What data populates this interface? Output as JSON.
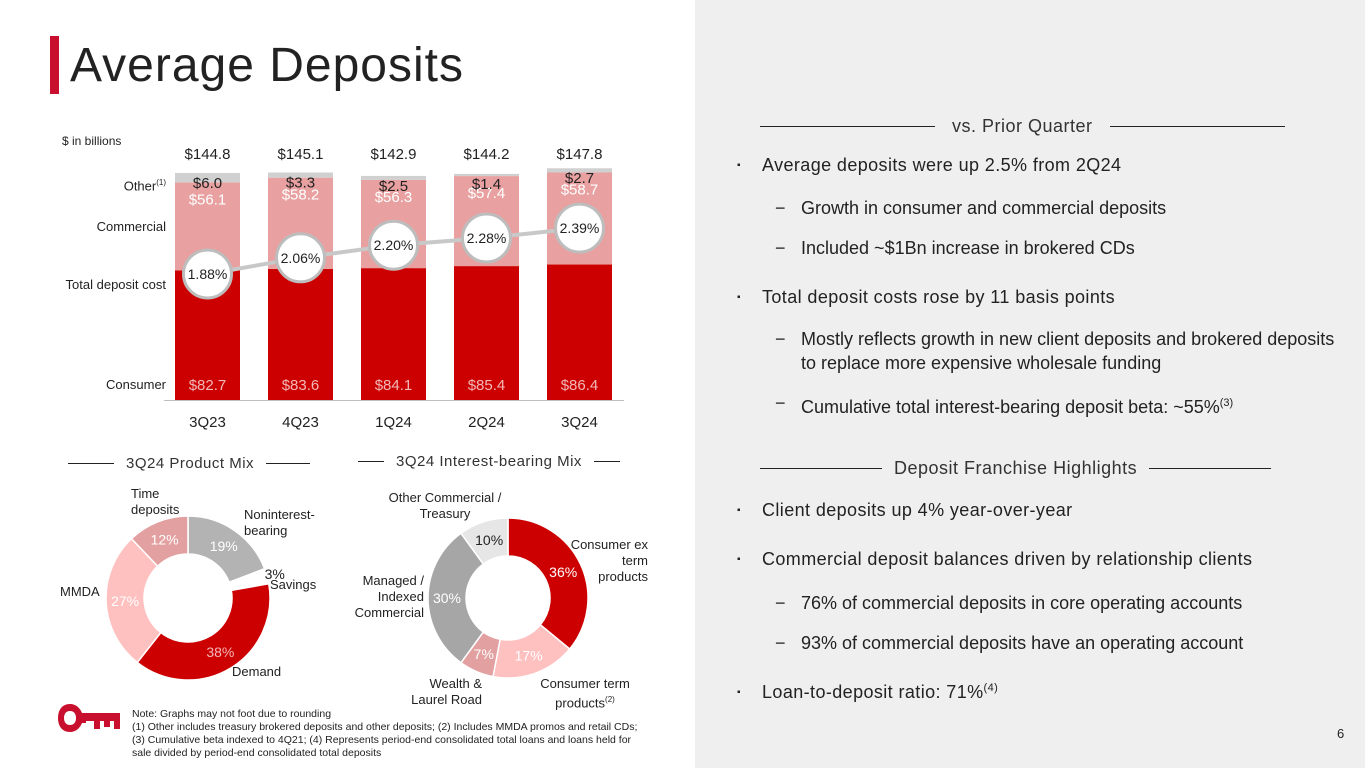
{
  "title": "Average Deposits",
  "units": "$ in billions",
  "side_labels": {
    "other": "Other",
    "other_sup": "(1)",
    "commercial": "Commercial",
    "deposit_cost": "Total deposit cost",
    "consumer": "Consumer"
  },
  "chart_data": [
    {
      "type": "bar",
      "stacked": true,
      "categories": [
        "3Q23",
        "4Q23",
        "1Q24",
        "2Q24",
        "3Q24"
      ],
      "series": [
        {
          "name": "Consumer",
          "values": [
            82.7,
            83.6,
            84.1,
            85.4,
            86.4
          ],
          "labels": [
            "$82.7",
            "$83.6",
            "$84.1",
            "$85.4",
            "$86.4"
          ],
          "color": "#cc0000"
        },
        {
          "name": "Commercial",
          "values": [
            56.1,
            58.2,
            56.3,
            57.4,
            58.7
          ],
          "labels": [
            "$56.1",
            "$58.2",
            "$56.3",
            "$57.4",
            "$58.7"
          ],
          "color": "#e8a0a0"
        },
        {
          "name": "Other",
          "values": [
            6.0,
            3.3,
            2.5,
            1.4,
            2.7
          ],
          "labels": [
            "$6.0",
            "$3.3",
            "$2.5",
            "$1.4",
            "$2.7"
          ],
          "color": "#d0d0d0"
        }
      ],
      "totals": [
        "$144.8",
        "$145.1",
        "$142.9",
        "$144.2",
        "$147.8"
      ],
      "line": {
        "name": "Total deposit cost",
        "values": [
          1.88,
          2.06,
          2.2,
          2.28,
          2.39
        ],
        "labels": [
          "1.88%",
          "2.06%",
          "2.20%",
          "2.28%",
          "2.39%"
        ]
      },
      "ylim": [
        0,
        150
      ]
    },
    {
      "type": "pie",
      "title": "3Q24 Product Mix",
      "slices": [
        {
          "name": "Noninterest-bearing",
          "value": 19,
          "label": "19%",
          "color": "#b3b3b3"
        },
        {
          "name": "Savings",
          "value": 3,
          "label": "3%",
          "color": "#ffffff"
        },
        {
          "name": "Demand",
          "value": 38,
          "label": "38%",
          "color": "#cc0000"
        },
        {
          "name": "MMDA",
          "value": 27,
          "label": "27%",
          "color": "#ffc0c0"
        },
        {
          "name": "Time deposits",
          "value": 12,
          "label": "12%",
          "color": "#e3a0a0"
        }
      ]
    },
    {
      "type": "pie",
      "title": "3Q24 Interest-bearing Mix",
      "slices": [
        {
          "name": "Consumer ex term products",
          "value": 36,
          "label": "36%",
          "color": "#cc0000"
        },
        {
          "name": "Consumer term products",
          "value": 17,
          "label": "17%",
          "color": "#ffc0c0"
        },
        {
          "name": "Wealth & Laurel Road",
          "value": 7,
          "label": "7%",
          "color": "#e3a0a0"
        },
        {
          "name": "Managed / Indexed Commercial",
          "value": 30,
          "label": "30%",
          "color": "#a6a6a6"
        },
        {
          "name": "Other Commercial / Treasury",
          "value": 10,
          "label": "10%",
          "color": "#e6e6e6"
        }
      ]
    }
  ],
  "donut_labels": {
    "time_deposits": "Time deposits",
    "noninterest": "Noninterest-bearing",
    "savings": "Savings",
    "mmda": "MMDA",
    "demand": "Demand",
    "other_commercial": "Other Commercial / Treasury",
    "consumer_ex": "Consumer ex term products",
    "managed": "Managed / Indexed Commercial",
    "wealth": "Wealth & Laurel Road",
    "consumer_term": "Consumer term products",
    "consumer_term_sup": "(2)"
  },
  "right": {
    "head1": "vs. Prior Quarter",
    "b1": "Average deposits were up 2.5% from 2Q24",
    "b1_s1": "Growth in consumer and commercial deposits",
    "b1_s2": "Included ~$1Bn increase in brokered CDs",
    "b2": "Total deposit costs rose by 11 basis points",
    "b2_s1": "Mostly reflects growth in new client deposits and brokered deposits to replace more expensive wholesale funding",
    "b2_s2": "Cumulative total interest-bearing deposit beta: ~55%",
    "b2_s2_sup": "(3)",
    "head2": "Deposit Franchise Highlights",
    "b3": "Client deposits up 4% year-over-year",
    "b4": "Commercial deposit balances driven by relationship clients",
    "b4_s1": "76% of commercial deposits in core operating accounts",
    "b4_s2": "93% of commercial deposits have an operating account",
    "b5": "Loan-to-deposit ratio: 71%",
    "b5_sup": "(4)",
    "bullet_mark": "▪",
    "dash": "−"
  },
  "note": [
    "Note: Graphs may not foot due to rounding",
    "(1) Other includes treasury brokered deposits and other deposits; (2) Includes MMDA promos and retail CDs;",
    "(3) Cumulative beta indexed to 4Q21; (4) Represents period-end consolidated total loans and loans held for",
    "sale divided by period-end consolidated total deposits"
  ],
  "page_number": "6",
  "colors": {
    "brand_red": "#c8102e",
    "panel_gray": "#efefef"
  },
  "logo": "key-logo-icon"
}
